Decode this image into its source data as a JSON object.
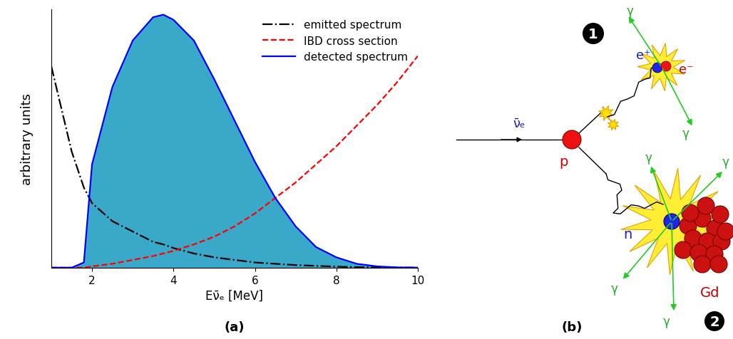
{
  "chart_data": {
    "type": "line",
    "caption": "(a)",
    "x_label": "Eν̄ₑ [MeV]",
    "y_label": "arbitrary units",
    "x": [
      1.0,
      1.5,
      1.8,
      2.0,
      2.5,
      3.0,
      3.5,
      3.75,
      4.0,
      4.5,
      5.0,
      5.5,
      6.0,
      6.5,
      7.0,
      7.5,
      8.0,
      8.5,
      9.0,
      9.5,
      10.0
    ],
    "series": [
      {
        "name": "emitted spectrum",
        "color": "#000000",
        "type": "line",
        "line_style": "dashdot",
        "values": [
          0.78,
          0.45,
          0.31,
          0.25,
          0.18,
          0.14,
          0.1,
          0.09,
          0.076,
          0.055,
          0.04,
          0.03,
          0.02,
          0.015,
          0.01,
          0.007,
          0.004,
          0.002,
          0.001,
          0.0005,
          0.0
        ]
      },
      {
        "name": "IBD cross section",
        "color": "#ff0000",
        "type": "line",
        "line_style": "dashed",
        "values": [
          0.0,
          0.0,
          0.0,
          0.005,
          0.015,
          0.03,
          0.045,
          0.055,
          0.065,
          0.09,
          0.12,
          0.16,
          0.21,
          0.27,
          0.33,
          0.4,
          0.47,
          0.55,
          0.63,
          0.72,
          0.82
        ]
      },
      {
        "name": "detected spectrum",
        "color": "#0000ff",
        "type": "area",
        "line_style": "solid",
        "values": [
          0.0,
          0.0,
          0.02,
          0.4,
          0.7,
          0.88,
          0.97,
          0.98,
          0.96,
          0.88,
          0.73,
          0.57,
          0.41,
          0.27,
          0.16,
          0.08,
          0.04,
          0.015,
          0.005,
          0.001,
          0.0
        ]
      }
    ],
    "xlim": [
      1,
      10
    ],
    "xticks": [
      2,
      4,
      6,
      8,
      10
    ],
    "ylim": [
      0,
      1.0
    ],
    "yticks": [],
    "tick_labels": "x",
    "legend": "upper right",
    "grid": false
  },
  "diagram": {
    "caption": "(b)",
    "incoming": "ν̄ₑ",
    "proton": "p",
    "neutron": "n",
    "positron": "e⁺",
    "electron": "e⁻",
    "nucleus": "Gd",
    "photons_1": [
      "γ",
      "γ"
    ],
    "photons_2": [
      "γ",
      "γ",
      "γ",
      "γ"
    ],
    "steps": [
      "1",
      "2"
    ]
  }
}
